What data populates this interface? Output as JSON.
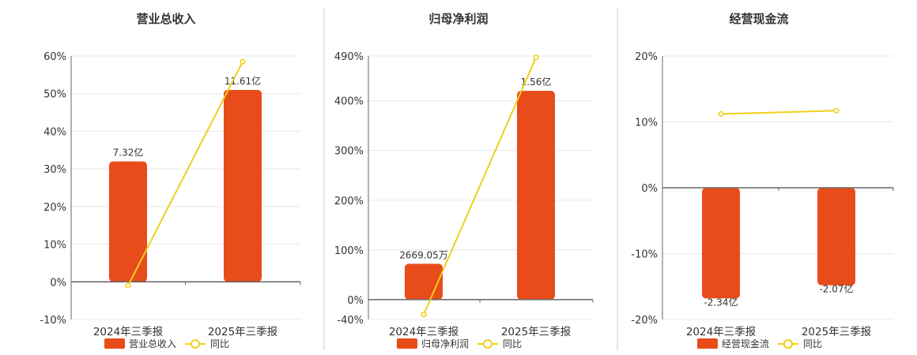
{
  "colors": {
    "bar": "#e84c1a",
    "line": "#f0cf1a",
    "grid": "#e8e8e8",
    "axis": "#666666",
    "divider": "#cccccc"
  },
  "chart_data": [
    {
      "type": "bar",
      "title": "营业总收入",
      "categories": [
        "2024年三季报",
        "2025年三季报"
      ],
      "series": [
        {
          "name": "营业总收入",
          "kind": "bar",
          "values": [
            32,
            51
          ],
          "labels": [
            "7.32亿",
            "11.61亿"
          ]
        },
        {
          "name": "同比",
          "kind": "line",
          "values": [
            -1,
            58.5
          ]
        }
      ],
      "yticks": [
        -10,
        0,
        10,
        20,
        30,
        40,
        50,
        60
      ],
      "ytick_labels": [
        "-10%",
        "0%",
        "10%",
        "20%",
        "30%",
        "40%",
        "50%",
        "60%"
      ],
      "ylim": [
        -10,
        60
      ],
      "grid": true,
      "legend": "bottom"
    },
    {
      "type": "bar",
      "title": "归母净利润",
      "categories": [
        "2024年三季报",
        "2025年三季报"
      ],
      "series": [
        {
          "name": "归母净利润",
          "kind": "bar",
          "values": [
            72,
            420
          ],
          "labels": [
            "2669.05万",
            "1.56亿"
          ]
        },
        {
          "name": "同比",
          "kind": "line",
          "values": [
            -30,
            487
          ]
        }
      ],
      "yticks": [
        -40,
        0,
        100,
        200,
        300,
        400,
        490
      ],
      "ytick_labels": [
        "-40%",
        "0%",
        "100%",
        "200%",
        "300%",
        "400%",
        "490%"
      ],
      "ylim": [
        -40,
        490
      ],
      "grid": true,
      "legend": "bottom"
    },
    {
      "type": "bar",
      "title": "经营现金流",
      "categories": [
        "2024年三季报",
        "2025年三季报"
      ],
      "series": [
        {
          "name": "经营现金流",
          "kind": "bar",
          "values": [
            -16.8,
            -14.8
          ],
          "labels": [
            "-2.34亿",
            "-2.07亿"
          ]
        },
        {
          "name": "同比",
          "kind": "line",
          "values": [
            11.2,
            11.7
          ]
        }
      ],
      "yticks": [
        -20,
        -10,
        0,
        10,
        20
      ],
      "ytick_labels": [
        "-20%",
        "-10%",
        "0%",
        "10%",
        "20%"
      ],
      "ylim": [
        -20,
        20
      ],
      "grid": true,
      "legend": "bottom"
    }
  ]
}
